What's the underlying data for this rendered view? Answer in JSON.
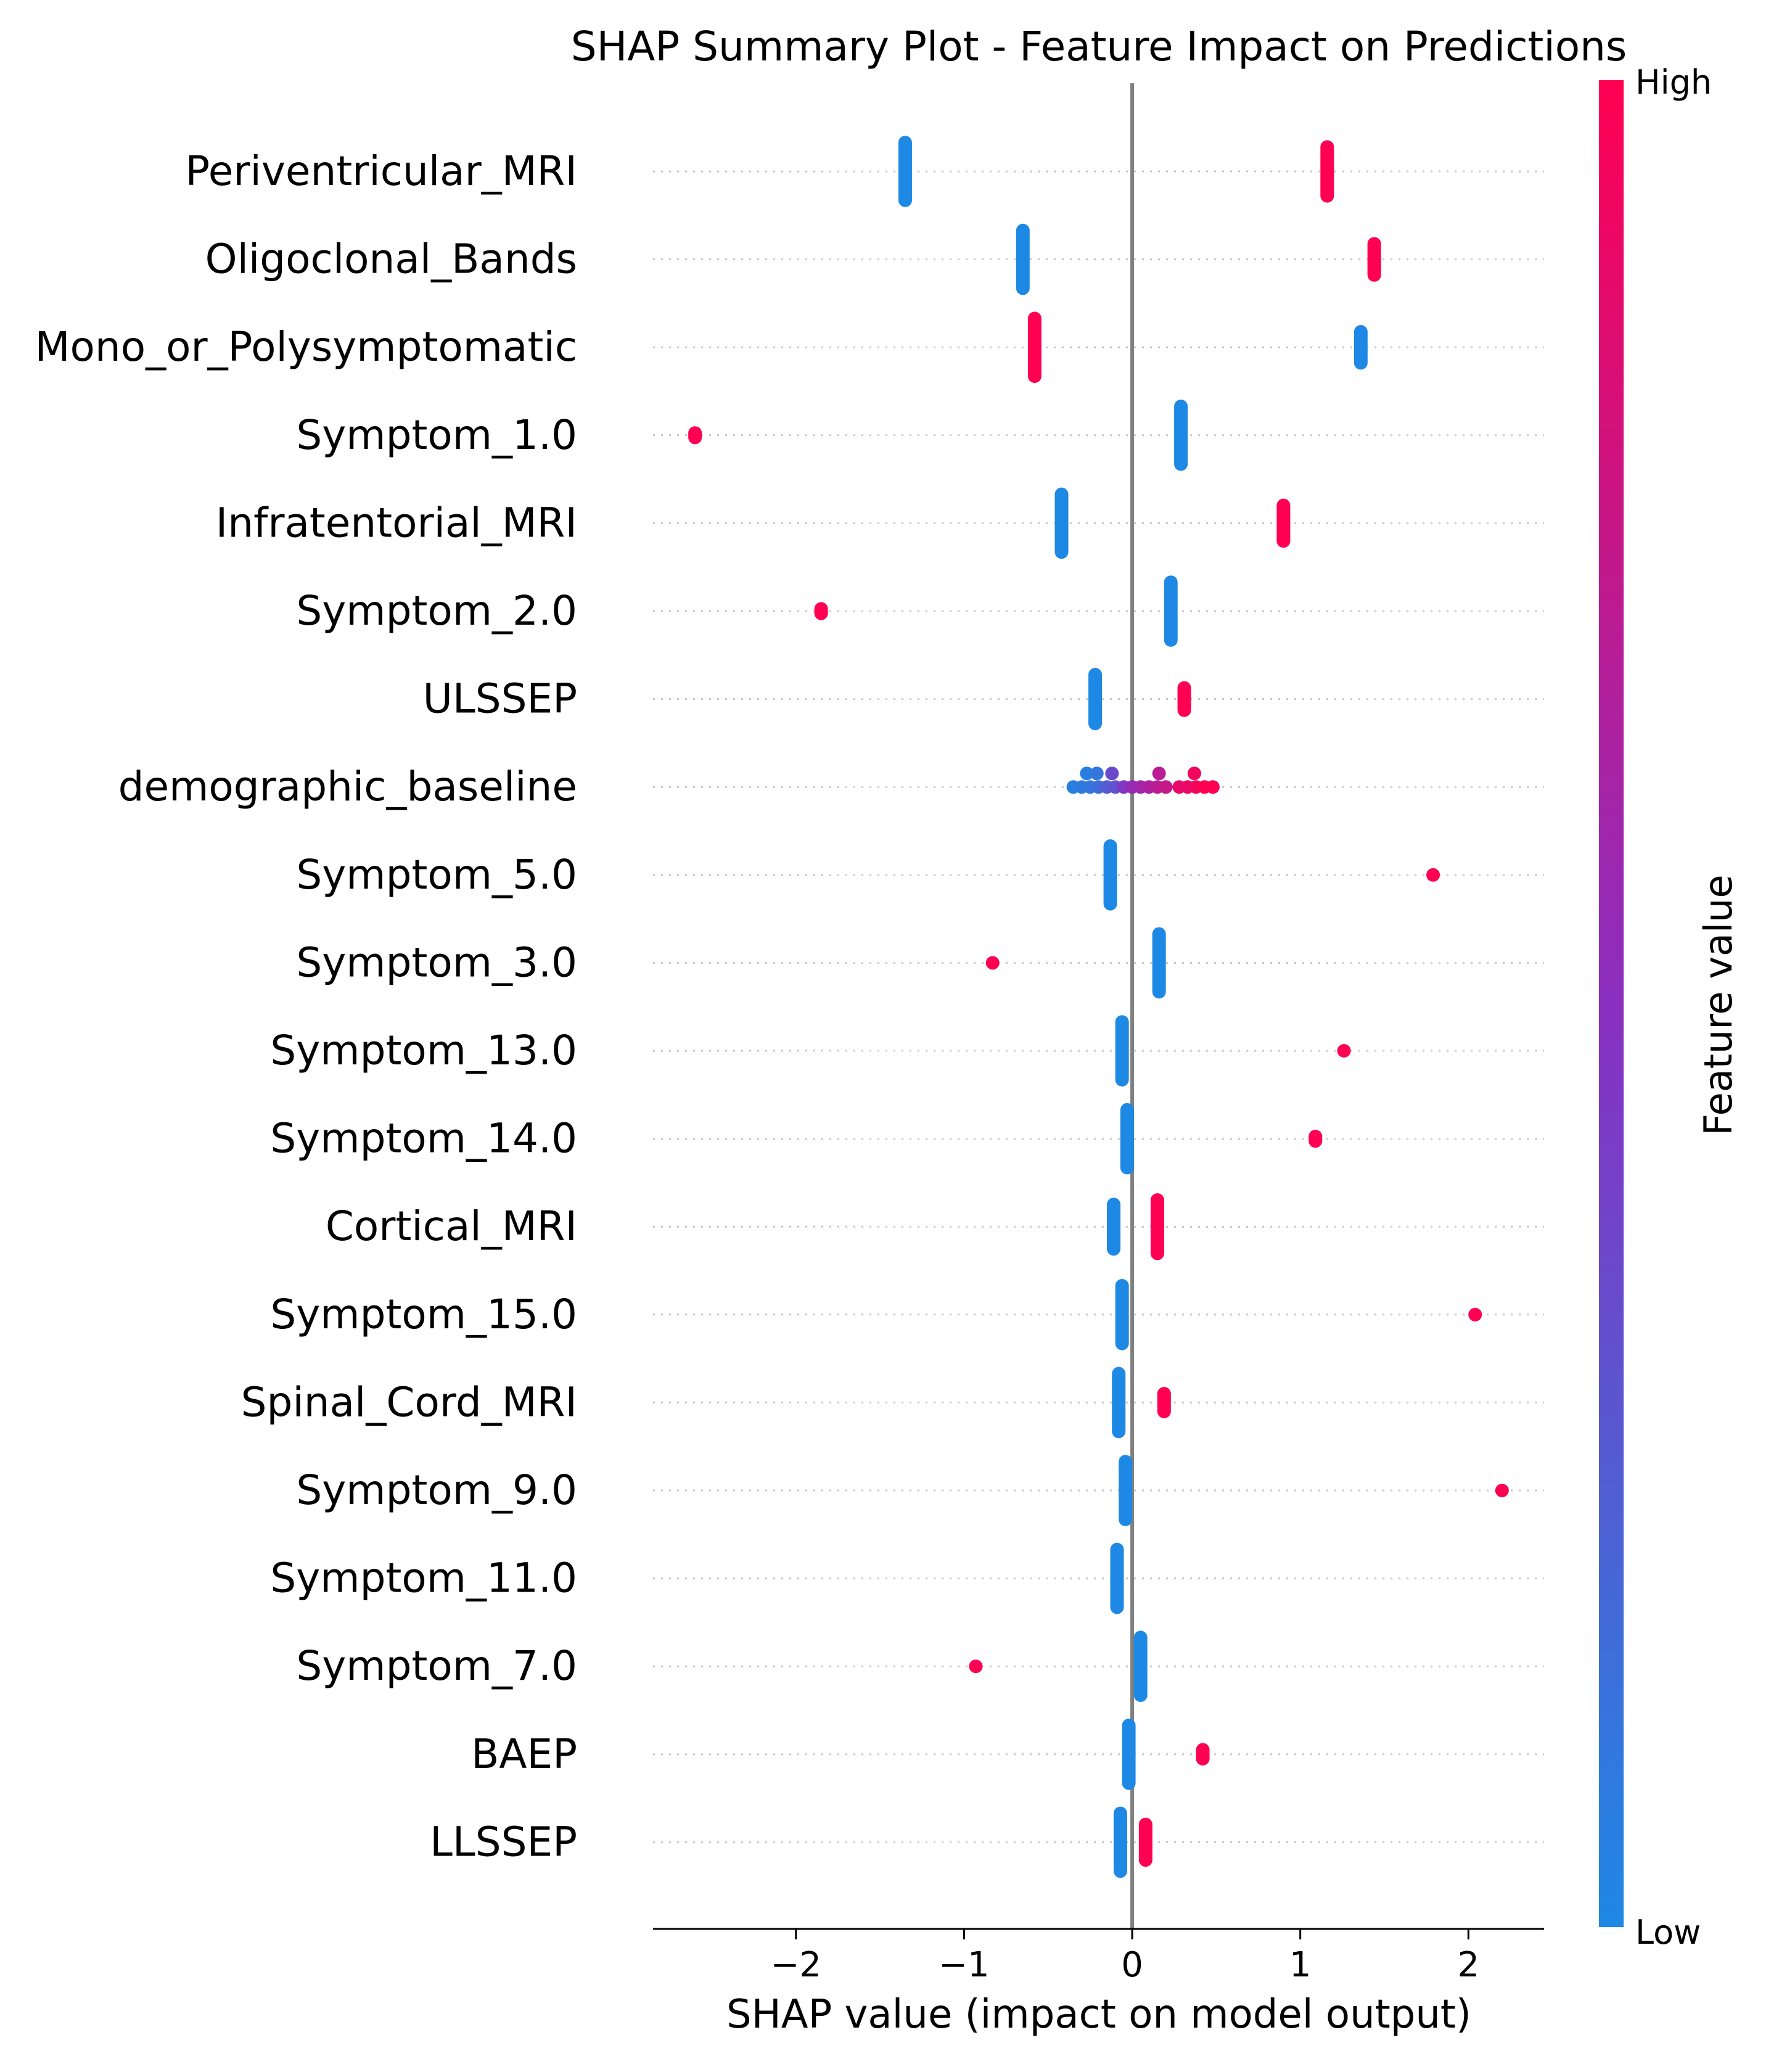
{
  "chart_data": {
    "type": "scatter",
    "subtype": "shap-summary",
    "title": "SHAP Summary Plot - Feature Impact on Predictions",
    "xlabel": "SHAP value (impact on model output)",
    "ylabel": "",
    "xlim": [
      -2.85,
      2.45
    ],
    "xticks": [
      -2,
      -1,
      0,
      1,
      2
    ],
    "xtick_labels": [
      "−2",
      "−1",
      "0",
      "1",
      "2"
    ],
    "colorbar": {
      "label": "Feature value",
      "high_label": "High",
      "low_label": "Low",
      "low_color": "#1e88e5",
      "high_color": "#ff0052"
    },
    "features": [
      {
        "name": "Periventricular_MRI",
        "points": [
          {
            "x": -1.35,
            "v": 0.0,
            "count": 14
          },
          {
            "x": 1.16,
            "v": 1.0,
            "count": 12
          }
        ]
      },
      {
        "name": "Oligoclonal_Bands",
        "points": [
          {
            "x": -0.65,
            "v": 0.0,
            "count": 14
          },
          {
            "x": 1.44,
            "v": 1.0,
            "count": 8
          }
        ]
      },
      {
        "name": "Mono_or_Polysymptomatic",
        "points": [
          {
            "x": -0.58,
            "v": 1.0,
            "count": 14
          },
          {
            "x": 1.36,
            "v": 0.0,
            "count": 8
          }
        ]
      },
      {
        "name": "Symptom_1.0",
        "points": [
          {
            "x": -2.6,
            "v": 1.0,
            "count": 2
          },
          {
            "x": 0.29,
            "v": 0.0,
            "count": 14
          }
        ]
      },
      {
        "name": "Infratentorial_MRI",
        "points": [
          {
            "x": -0.42,
            "v": 0.0,
            "count": 14
          },
          {
            "x": 0.9,
            "v": 1.0,
            "count": 9
          }
        ]
      },
      {
        "name": "Symptom_2.0",
        "points": [
          {
            "x": -1.85,
            "v": 1.0,
            "count": 2
          },
          {
            "x": 0.23,
            "v": 0.0,
            "count": 14
          }
        ]
      },
      {
        "name": "ULSSEP",
        "points": [
          {
            "x": -0.22,
            "v": 0.0,
            "count": 12
          },
          {
            "x": 0.31,
            "v": 1.0,
            "count": 6
          }
        ]
      },
      {
        "name": "demographic_baseline",
        "points": [
          {
            "x": -0.35,
            "v": 0.05,
            "dy": 0
          },
          {
            "x": -0.3,
            "v": 0.08,
            "dy": 0
          },
          {
            "x": -0.25,
            "v": 0.1,
            "dy": 0
          },
          {
            "x": -0.2,
            "v": 0.15,
            "dy": 0
          },
          {
            "x": -0.15,
            "v": 0.25,
            "dy": 0
          },
          {
            "x": -0.1,
            "v": 0.3,
            "dy": 0
          },
          {
            "x": -0.05,
            "v": 0.45,
            "dy": 0
          },
          {
            "x": 0.0,
            "v": 0.55,
            "dy": 0
          },
          {
            "x": 0.05,
            "v": 0.6,
            "dy": 0
          },
          {
            "x": 0.1,
            "v": 0.65,
            "dy": 0
          },
          {
            "x": 0.15,
            "v": 0.7,
            "dy": 0
          },
          {
            "x": 0.2,
            "v": 0.75,
            "dy": 0
          },
          {
            "x": 0.28,
            "v": 0.9,
            "dy": 0
          },
          {
            "x": 0.33,
            "v": 0.9,
            "dy": 0
          },
          {
            "x": 0.38,
            "v": 0.95,
            "dy": 0
          },
          {
            "x": 0.43,
            "v": 1.0,
            "dy": 0
          },
          {
            "x": 0.48,
            "v": 1.0,
            "dy": 0
          },
          {
            "x": -0.27,
            "v": 0.05,
            "dy": -1
          },
          {
            "x": -0.21,
            "v": 0.1,
            "dy": -1
          },
          {
            "x": -0.12,
            "v": 0.35,
            "dy": -1
          },
          {
            "x": 0.16,
            "v": 0.7,
            "dy": -1
          },
          {
            "x": 0.37,
            "v": 0.95,
            "dy": -1
          }
        ]
      },
      {
        "name": "Symptom_5.0",
        "points": [
          {
            "x": -0.13,
            "v": 0.0,
            "count": 14
          },
          {
            "x": 1.79,
            "v": 1.0,
            "count": 1
          }
        ]
      },
      {
        "name": "Symptom_3.0",
        "points": [
          {
            "x": -0.83,
            "v": 1.0,
            "count": 1
          },
          {
            "x": 0.16,
            "v": 0.0,
            "count": 14
          }
        ]
      },
      {
        "name": "Symptom_13.0",
        "points": [
          {
            "x": -0.06,
            "v": 0.0,
            "count": 14
          },
          {
            "x": 1.26,
            "v": 1.0,
            "count": 1
          }
        ]
      },
      {
        "name": "Symptom_14.0",
        "points": [
          {
            "x": -0.03,
            "v": 0.0,
            "count": 14
          },
          {
            "x": 1.09,
            "v": 1.0,
            "count": 2
          }
        ]
      },
      {
        "name": "Cortical_MRI",
        "points": [
          {
            "x": -0.11,
            "v": 0.0,
            "count": 11
          },
          {
            "x": 0.15,
            "v": 1.0,
            "count": 13
          }
        ]
      },
      {
        "name": "Symptom_15.0",
        "points": [
          {
            "x": -0.06,
            "v": 0.0,
            "count": 14
          },
          {
            "x": 2.04,
            "v": 1.0,
            "count": 1
          }
        ]
      },
      {
        "name": "Spinal_Cord_MRI",
        "points": [
          {
            "x": -0.08,
            "v": 0.0,
            "count": 14
          },
          {
            "x": 0.19,
            "v": 1.0,
            "count": 5
          }
        ]
      },
      {
        "name": "Symptom_9.0",
        "points": [
          {
            "x": -0.04,
            "v": 0.0,
            "count": 14
          },
          {
            "x": 2.2,
            "v": 1.0,
            "count": 1
          }
        ]
      },
      {
        "name": "Symptom_11.0",
        "points": [
          {
            "x": -0.09,
            "v": 0.0,
            "count": 14
          }
        ]
      },
      {
        "name": "Symptom_7.0",
        "points": [
          {
            "x": -0.93,
            "v": 1.0,
            "count": 1
          },
          {
            "x": 0.05,
            "v": 0.0,
            "count": 14
          }
        ]
      },
      {
        "name": "BAEP",
        "points": [
          {
            "x": -0.02,
            "v": 0.0,
            "count": 14
          },
          {
            "x": 0.42,
            "v": 1.0,
            "count": 3
          }
        ]
      },
      {
        "name": "LLSSEP",
        "points": [
          {
            "x": -0.07,
            "v": 0.0,
            "count": 14
          },
          {
            "x": 0.08,
            "v": 1.0,
            "count": 9
          }
        ]
      }
    ]
  }
}
